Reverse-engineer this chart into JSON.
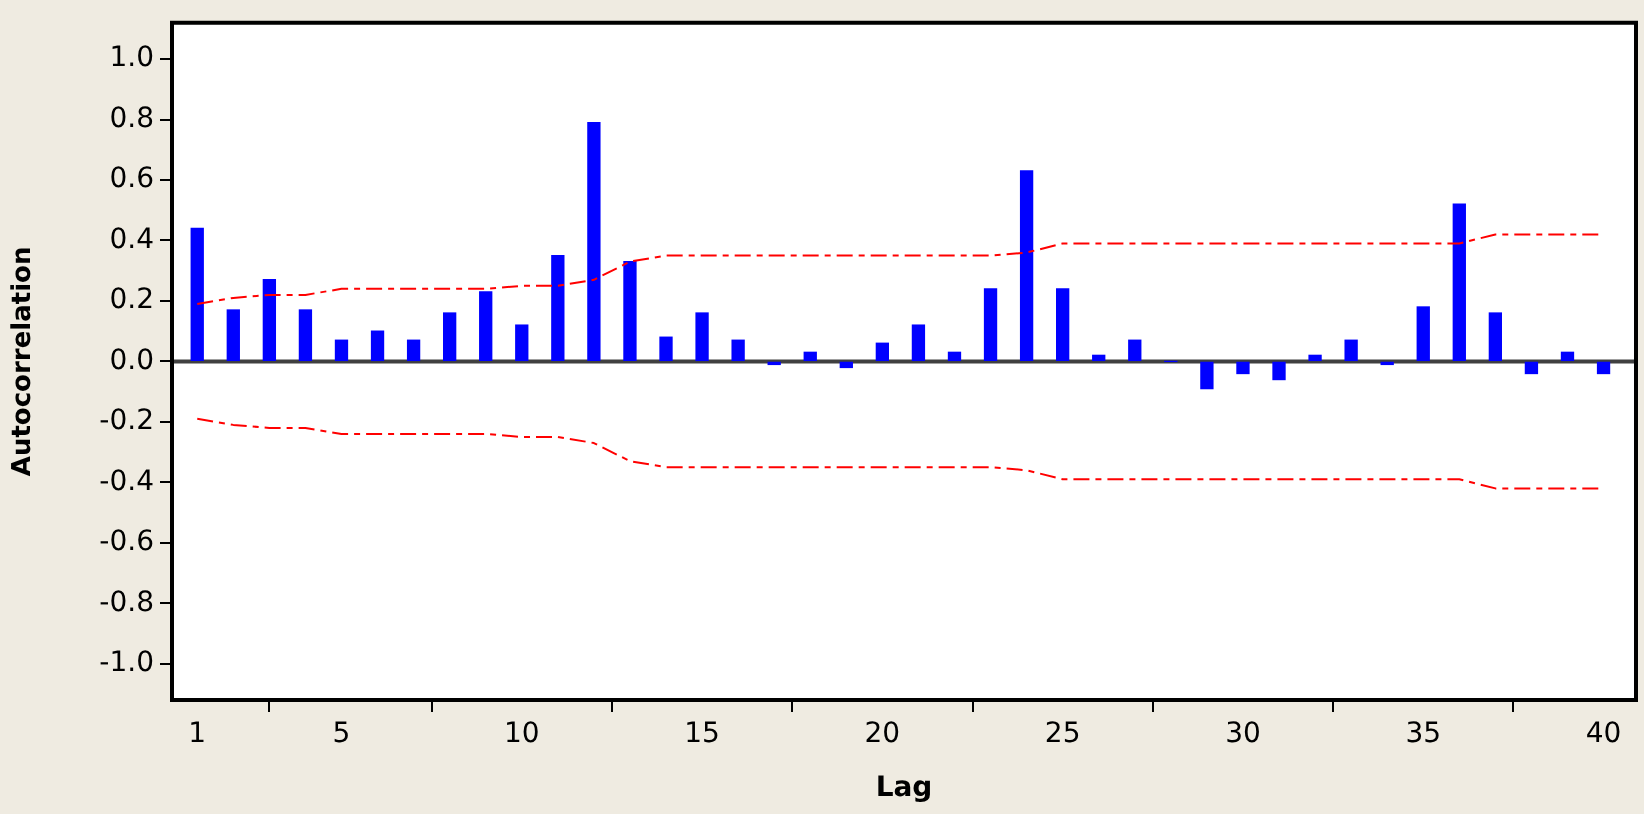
{
  "chart_data": {
    "type": "bar",
    "xlabel": "Lag",
    "ylabel": "Autocorrelation",
    "x": [
      1,
      2,
      3,
      4,
      5,
      6,
      7,
      8,
      9,
      10,
      11,
      12,
      13,
      14,
      15,
      16,
      17,
      18,
      19,
      20,
      21,
      22,
      23,
      24,
      25,
      26,
      27,
      28,
      29,
      30,
      31,
      32,
      33,
      34,
      35,
      36,
      37,
      38,
      39,
      40
    ],
    "series": [
      {
        "color": "#0000ff",
        "values": [
          0.44,
          0.17,
          0.27,
          0.17,
          0.07,
          0.1,
          0.07,
          0.16,
          0.23,
          0.12,
          0.35,
          0.79,
          0.33,
          0.08,
          0.16,
          0.07,
          -0.01,
          0.03,
          -0.02,
          0.06,
          0.12,
          0.03,
          0.24,
          0.63,
          0.24,
          0.02,
          0.07,
          0.0,
          -0.09,
          -0.04,
          -0.06,
          0.02,
          0.07,
          -0.01,
          0.18,
          0.52,
          0.16,
          -0.04,
          0.03,
          -0.04
        ]
      },
      {
        "type": "line",
        "color": "#ff0000",
        "line_style": "dashed",
        "marker": "none",
        "values": [
          0.19,
          0.21,
          0.22,
          0.22,
          0.24,
          0.24,
          0.24,
          0.24,
          0.24,
          0.25,
          0.25,
          0.27,
          0.33,
          0.35,
          0.35,
          0.35,
          0.35,
          0.35,
          0.35,
          0.35,
          0.35,
          0.35,
          0.35,
          0.36,
          0.39,
          0.39,
          0.39,
          0.39,
          0.39,
          0.39,
          0.39,
          0.39,
          0.39,
          0.39,
          0.39,
          0.39,
          0.42,
          0.42,
          0.42,
          0.42
        ]
      },
      {
        "type": "line",
        "color": "#ff0000",
        "line_style": "dashed",
        "marker": "none",
        "values": [
          -0.19,
          -0.21,
          -0.22,
          -0.22,
          -0.24,
          -0.24,
          -0.24,
          -0.24,
          -0.24,
          -0.25,
          -0.25,
          -0.27,
          -0.33,
          -0.35,
          -0.35,
          -0.35,
          -0.35,
          -0.35,
          -0.35,
          -0.35,
          -0.35,
          -0.35,
          -0.35,
          -0.36,
          -0.39,
          -0.39,
          -0.39,
          -0.39,
          -0.39,
          -0.39,
          -0.39,
          -0.39,
          -0.39,
          -0.39,
          -0.39,
          -0.39,
          -0.42,
          -0.42,
          -0.42,
          -0.42
        ]
      }
    ],
    "xlim": [
      0.3,
      40.9
    ],
    "xticks": [
      1,
      5,
      10,
      15,
      20,
      25,
      30,
      35,
      40
    ],
    "ylim": [
      -1.12,
      1.12
    ],
    "yticks": [
      {
        "value": -1,
        "label": "-1.0"
      },
      {
        "value": -0.8,
        "label": "-0.8"
      },
      {
        "value": -0.6,
        "label": "-0.6"
      },
      {
        "value": -0.4,
        "label": "-0.4"
      },
      {
        "value": -0.2,
        "label": "-0.2"
      },
      {
        "value": 0,
        "label": "0.0"
      },
      {
        "value": 0.2,
        "label": "0.2"
      },
      {
        "value": 0.4,
        "label": "0.4"
      },
      {
        "value": 0.6,
        "label": "0.6"
      },
      {
        "value": 0.8,
        "label": "0.8"
      },
      {
        "value": 1,
        "label": "1.0"
      }
    ],
    "ref_lines": [
      {
        "axis": "y",
        "value": 0,
        "color": "#404040"
      }
    ],
    "grid": false,
    "legend": false
  }
}
